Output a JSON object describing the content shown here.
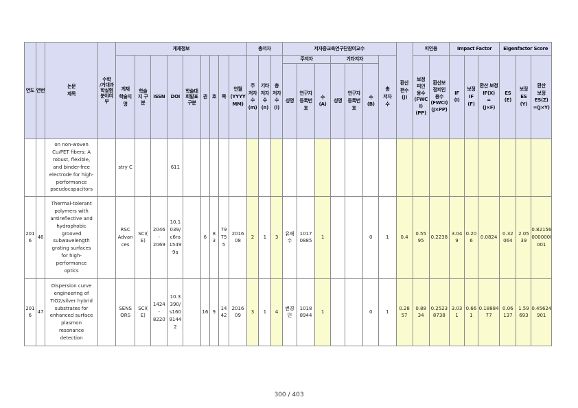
{
  "header": {
    "year": "연도",
    "seq": "연번",
    "title": "논문\n제목",
    "math": "수학\n/거대과\n학실험\n분야여\n부",
    "pub_group": "게재정보",
    "journal": "게재\n학술지\n명",
    "jclass": "학술\n지 구\n분",
    "issn": "ISSN",
    "doi": "DOI",
    "univ_journal": "학술대\n회발표\n구분",
    "vol": "권",
    "issue": "호",
    "pages": "쪽",
    "yearmonth": "연월\n(YYYY\nMM)",
    "authors_group": "총저자",
    "main_authors": "주\n저자\n수\n(m)",
    "other_authors": "기타\n저자\n수\n(n)",
    "total_authors": "총\n저자\n수\n(l)",
    "prof_group": "저자중교육연구단참여교수",
    "main_sub": "주저자",
    "other_sub": "기타저자",
    "name1": "성명",
    "regno1": "연구자\n등록번\n호",
    "count_a": "수\n(A)",
    "name2": "성명",
    "regno2": "연구자\n등록번\n호",
    "count_b": "수\n(B)",
    "total_count": "총\n저자\n수",
    "converted": "환산\n편수\n(J)",
    "cite_group": "피인용",
    "fwci": "보정\n피인\n용수\n(FWC\nI)\n(PP)",
    "conv_cite": "환산보\n정피인\n용수\n(FWCI)\n(J×PP)",
    "if_group": "Impact Factor",
    "if": "IF\n(I)",
    "adj_if": "보정\nIF\n(F)",
    "conv_if": "환산 보정\nIF(X)\n=\n(J×F)",
    "es_group": "Eigenfactor Score",
    "es": "ES\n(E)",
    "adj_es": "보정\nES\n(Y)",
    "conv_es": "환산\n보정\nES(Z)\n=(J×Y)"
  },
  "rows": [
    {
      "year": "",
      "seq": "",
      "title": "on non-woven\nCu/PET fibers: A\nrobust, flexible,\nand binder-free\nelectrode for high-\nperformance\npseudocapacitors",
      "math": "",
      "journal": "stry C",
      "jclass": "",
      "issn": "",
      "doi": "611",
      "univ": "",
      "vol": "",
      "issue": "",
      "pages": "",
      "ym": "",
      "m": "",
      "n": "",
      "l": "",
      "name1": "",
      "reg1": "",
      "a": "",
      "name2": "",
      "reg2": "",
      "b": "",
      "tot": "",
      "j": "",
      "pp": "",
      "jpp": "",
      "i": "",
      "f": "",
      "x": "",
      "e": "",
      "y": "",
      "z": ""
    },
    {
      "year": "201\n6",
      "seq": "46",
      "title": "Thermal-tolerant\npolymers with\nantireflective and\nhydrophobic\ngrooved\nsubwavelength\ngrating surfaces\nfor high-\nperformance\noptics",
      "math": "",
      "journal": "RSC\nAdvan\nces",
      "jclass": "SCI(\nE)",
      "issn": "2046\n-\n2069",
      "doi": "10.1\n039/\nc6ra\n1549\n9a",
      "univ": "",
      "vol": "6",
      "issue": "8\n3",
      "pages": "79\n75\n5",
      "ym": "2016\n08",
      "m": "2",
      "n": "1",
      "l": "3",
      "name1": "유재\n수",
      "reg1": "1017\n0885",
      "a": "1",
      "name2": "",
      "reg2": "",
      "b": "0",
      "tot": "1",
      "j": "0.4",
      "pp": "0.55\n95",
      "jpp": "0.2238",
      "i": "3.04\n9",
      "f": "0.20\n6",
      "x": "0.0824",
      "e": "0.32\n064",
      "y": "2.05\n39",
      "z": "0.821560\n0000000\n001"
    },
    {
      "year": "201\n6",
      "seq": "47",
      "title": "Dispersion curve\nengineering of\nTiO2/silver hybrid\nsubstrates for\nenhanced surface\nplasmon\nresonance\ndetection",
      "math": "",
      "journal": "SENS\nORS",
      "jclass": "SCI(\nE)",
      "issn": "1424\n-\n8220",
      "doi": "10.3\n390/\ns160\n9144\n2",
      "univ": "",
      "vol": "16",
      "issue": "9",
      "pages": "14\n42",
      "ym": "2016\n09",
      "m": "3",
      "n": "1",
      "l": "4",
      "name1": "변경\n민",
      "reg1": "1018\n8944",
      "a": "1",
      "name2": "",
      "reg2": "",
      "b": "0",
      "tot": "1",
      "j": "0.28\n57",
      "pp": "0.88\n34",
      "jpp": "0.2523\n8738",
      "i": "3.03\n1",
      "f": "0.66\n1",
      "x": "0.18884\n77",
      "e": "0.06\n137",
      "y": "1.59\n693",
      "z": "0.456242\n901"
    }
  ],
  "page": "300 / 403"
}
